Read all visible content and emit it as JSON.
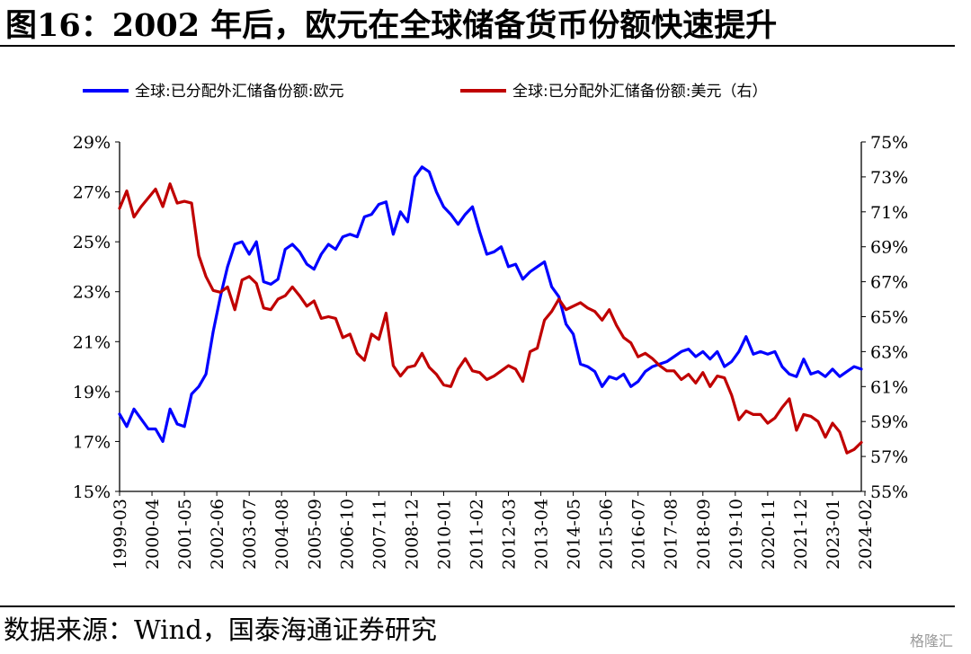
{
  "title": "图16：2002 年后，欧元在全球储备货币份额快速提升",
  "source": "数据来源：Wind，国泰海通证券研究",
  "watermark": "格隆汇",
  "colors": {
    "euro": "#0000ff",
    "usd": "#c00000"
  },
  "chart_data": {
    "type": "line",
    "x_tick_labels": [
      "1999-03",
      "2000-04",
      "2001-05",
      "2002-06",
      "2003-07",
      "2004-08",
      "2005-09",
      "2006-10",
      "2007-11",
      "2008-12",
      "2010-01",
      "2011-02",
      "2012-03",
      "2013-04",
      "2014-05",
      "2015-06",
      "2016-07",
      "2017-08",
      "2018-09",
      "2019-10",
      "2020-11",
      "2021-12",
      "2023-01",
      "2024-02"
    ],
    "left_axis": {
      "ylim": [
        15,
        29
      ],
      "ticks": [
        "15%",
        "17%",
        "19%",
        "21%",
        "23%",
        "25%",
        "27%",
        "29%"
      ]
    },
    "right_axis": {
      "ylim": [
        55,
        75
      ],
      "ticks": [
        "55%",
        "57%",
        "59%",
        "61%",
        "63%",
        "65%",
        "67%",
        "69%",
        "71%",
        "73%",
        "75%"
      ]
    },
    "legend_position": "top",
    "series": [
      {
        "name": "全球:已分配外汇储备份额:欧元",
        "axis": "left",
        "color": "#0000ff",
        "values": [
          18.1,
          17.6,
          18.3,
          17.9,
          17.5,
          17.5,
          17.0,
          18.3,
          17.7,
          17.6,
          18.9,
          19.2,
          19.7,
          21.4,
          22.8,
          24.0,
          24.9,
          25.0,
          24.5,
          25.0,
          23.4,
          23.3,
          23.5,
          24.7,
          24.9,
          24.6,
          24.1,
          23.9,
          24.5,
          24.9,
          24.7,
          25.2,
          25.3,
          25.2,
          26.0,
          26.1,
          26.5,
          26.6,
          25.3,
          26.2,
          25.8,
          27.6,
          28.0,
          27.8,
          27.0,
          26.4,
          26.1,
          25.7,
          26.1,
          26.4,
          25.4,
          24.5,
          24.6,
          24.8,
          24.0,
          24.1,
          23.5,
          23.8,
          24.0,
          24.2,
          23.2,
          22.8,
          21.7,
          21.3,
          20.1,
          20.0,
          19.8,
          19.2,
          19.6,
          19.5,
          19.7,
          19.2,
          19.4,
          19.8,
          20.0,
          20.1,
          20.2,
          20.4,
          20.6,
          20.7,
          20.4,
          20.6,
          20.3,
          20.6,
          20.0,
          20.2,
          20.6,
          21.2,
          20.5,
          20.6,
          20.5,
          20.6,
          20.0,
          19.7,
          19.6,
          20.3,
          19.7,
          19.8,
          19.6,
          19.9,
          19.6,
          19.8,
          20.0,
          19.9
        ]
      },
      {
        "name": "全球:已分配外汇储备份额:美元（右）",
        "axis": "right",
        "color": "#c00000",
        "values": [
          71.2,
          72.2,
          70.7,
          71.3,
          71.8,
          72.3,
          71.3,
          72.6,
          71.5,
          71.6,
          71.5,
          68.5,
          67.3,
          66.5,
          66.4,
          66.7,
          65.4,
          67.1,
          67.3,
          66.9,
          65.5,
          65.4,
          66.0,
          66.2,
          66.7,
          66.2,
          65.6,
          65.9,
          64.9,
          65.0,
          64.9,
          63.8,
          64.0,
          62.9,
          62.5,
          64.0,
          63.7,
          65.2,
          62.2,
          61.6,
          62.1,
          62.2,
          62.9,
          62.1,
          61.7,
          61.1,
          61.0,
          62.0,
          62.6,
          61.9,
          61.8,
          61.4,
          61.6,
          61.9,
          62.2,
          62.0,
          61.3,
          63.0,
          63.2,
          64.8,
          65.3,
          66.0,
          65.4,
          65.6,
          65.8,
          65.5,
          65.3,
          64.8,
          65.4,
          64.5,
          63.8,
          63.5,
          62.7,
          62.9,
          62.6,
          62.2,
          61.9,
          61.9,
          61.4,
          61.7,
          61.2,
          61.8,
          61.0,
          61.6,
          61.5,
          60.5,
          59.1,
          59.6,
          59.4,
          59.4,
          58.9,
          59.2,
          59.8,
          60.3,
          58.5,
          59.4,
          59.3,
          59.0,
          58.1,
          58.9,
          58.4,
          57.2,
          57.4,
          57.8
        ]
      }
    ]
  }
}
